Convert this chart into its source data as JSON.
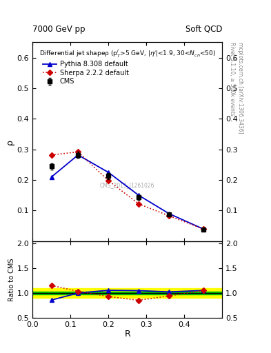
{
  "top_left_label": "7000 GeV pp",
  "top_right_label": "Soft QCD",
  "inner_title": "Differential jet shapeρ (p$_T^j$>5 GeV, |η$^j$|<1.9, 30<N$_{ch}$<50)",
  "xlabel": "R",
  "ylabel_main": "ρ",
  "ylabel_ratio": "Ratio to CMS",
  "right_label1": "Rivet 3.1.10, ≥ 500k events",
  "right_label2": "mcplots.cern.ch [arXiv:1306.3436]",
  "watermark": "CMS_2013_I1261026",
  "cms_x": [
    0.05,
    0.12,
    0.2,
    0.28,
    0.36,
    0.45
  ],
  "cms_y": [
    0.245,
    0.282,
    0.213,
    0.143,
    0.088,
    0.038
  ],
  "cms_yerr": [
    0.01,
    0.01,
    0.01,
    0.008,
    0.005,
    0.004
  ],
  "pythia_x": [
    0.05,
    0.12,
    0.2,
    0.28,
    0.36,
    0.45
  ],
  "pythia_y": [
    0.21,
    0.282,
    0.225,
    0.15,
    0.09,
    0.04
  ],
  "sherpa_x": [
    0.05,
    0.12,
    0.2,
    0.28,
    0.36,
    0.45
  ],
  "sherpa_y": [
    0.282,
    0.292,
    0.198,
    0.122,
    0.083,
    0.04
  ],
  "ratio_pythia_x": [
    0.05,
    0.12,
    0.2,
    0.28,
    0.36,
    0.45
  ],
  "ratio_pythia_y": [
    0.857,
    1.0,
    1.056,
    1.049,
    1.023,
    1.053
  ],
  "ratio_sherpa_x": [
    0.05,
    0.12,
    0.2,
    0.28,
    0.36,
    0.45
  ],
  "ratio_sherpa_y": [
    1.153,
    1.035,
    0.93,
    0.853,
    0.943,
    1.053
  ],
  "band_yellow_low": 0.9,
  "band_yellow_high": 1.1,
  "band_green_low": 0.97,
  "band_green_high": 1.03,
  "cms_color": "#000000",
  "pythia_color": "#0000cc",
  "sherpa_color": "#cc0000",
  "band_yellow": "#ffff00",
  "band_green": "#00bb00",
  "main_ylim": [
    0.0,
    0.65
  ],
  "main_yticks": [
    0.1,
    0.2,
    0.3,
    0.4,
    0.5,
    0.6
  ],
  "ratio_ylim": [
    0.5,
    2.05
  ],
  "ratio_yticks": [
    0.5,
    1.0,
    1.5,
    2.0
  ],
  "xlim": [
    0.0,
    0.5
  ],
  "xticks": [
    0.0,
    0.1,
    0.2,
    0.3,
    0.4
  ]
}
